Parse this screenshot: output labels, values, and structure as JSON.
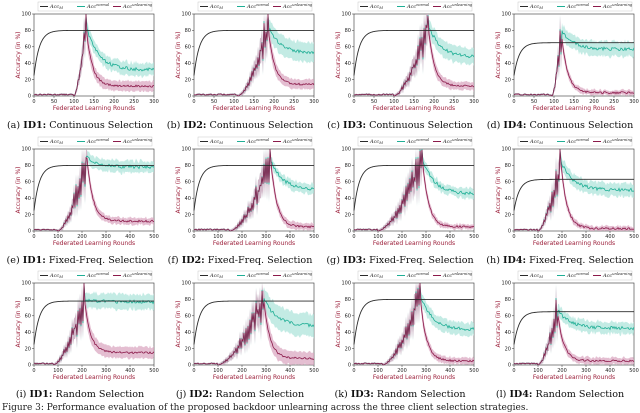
{
  "colors": {
    "acc_m": "#2b2b2b",
    "acc_normal": "#1fae95",
    "acc_normal_band": "#a9e3d8",
    "acc_unlearning": "#8b1a4a",
    "acc_unlearning_band": "#d9a3bd",
    "axis_label": "#9c1f3a"
  },
  "legend": {
    "acc_m": "Acc_M",
    "acc_normal": "Acc_B^normal",
    "acc_unlearning": "Acc_B^unlearning"
  },
  "chart_data": [
    {
      "id": "a",
      "type": "line",
      "caption_prefix": "(a) ",
      "caption_bold": "ID1:",
      "caption_rest": " Continuous Selection",
      "xlabel": "Federated Learning Rounds",
      "ylabel": "Accuracy (in %)",
      "xlim": [
        0,
        300
      ],
      "ylim": [
        0,
        100
      ],
      "xticks": [
        "0",
        "50",
        "100",
        "150",
        "200",
        "250",
        "300"
      ],
      "yticks": [
        "0",
        "20",
        "40",
        "60",
        "80",
        "100"
      ],
      "acc_m_plateau": 80,
      "acc_m_rise": 25,
      "peak_round": 130,
      "peak_value": 86,
      "start_round": 100,
      "normal_final": 32,
      "unlearning_final": 12,
      "band_normal": 8,
      "band_unlearning": 6
    },
    {
      "id": "b",
      "type": "line",
      "caption_prefix": "(b) ",
      "caption_bold": "ID2:",
      "caption_rest": " Continuous Selection",
      "xlabel": "Federated Learning Rounds",
      "ylabel": "Accuracy (in %)",
      "xlim": [
        0,
        300
      ],
      "ylim": [
        0,
        100
      ],
      "xticks": [
        "0",
        "50",
        "100",
        "150",
        "200",
        "250",
        "300"
      ],
      "yticks": [
        "0",
        "20",
        "40",
        "60",
        "80",
        "100"
      ],
      "acc_m_plateau": 80,
      "acc_m_rise": 25,
      "peak_round": 185,
      "peak_value": 85,
      "start_round": 110,
      "normal_final": 52,
      "unlearning_final": 14,
      "band_normal": 12,
      "band_unlearning": 6
    },
    {
      "id": "c",
      "type": "line",
      "caption_prefix": "(c) ",
      "caption_bold": "ID3:",
      "caption_rest": " Continuous Selection",
      "xlabel": "Federated Learning Rounds",
      "ylabel": "Accuracy (in %)",
      "xlim": [
        0,
        300
      ],
      "ylim": [
        0,
        100
      ],
      "xticks": [
        "0",
        "50",
        "100",
        "150",
        "200",
        "250",
        "300"
      ],
      "yticks": [
        "0",
        "20",
        "40",
        "60",
        "80",
        "100"
      ],
      "acc_m_plateau": 80,
      "acc_m_rise": 25,
      "peak_round": 185,
      "peak_value": 88,
      "start_round": 100,
      "normal_final": 47,
      "unlearning_final": 12,
      "band_normal": 10,
      "band_unlearning": 5
    },
    {
      "id": "d",
      "type": "line",
      "caption_prefix": "(d) ",
      "caption_bold": "ID4:",
      "caption_rest": " Continuous Selection",
      "xlabel": "Federated Learning Rounds",
      "ylabel": "Accuracy (in %)",
      "xlim": [
        0,
        300
      ],
      "ylim": [
        0,
        100
      ],
      "xticks": [
        "0",
        "50",
        "100",
        "150",
        "200",
        "250",
        "300"
      ],
      "yticks": [
        "0",
        "20",
        "40",
        "60",
        "80",
        "100"
      ],
      "acc_m_plateau": 65,
      "acc_m_rise": 25,
      "peak_round": 118,
      "peak_value": 80,
      "start_round": 95,
      "normal_final": 57,
      "unlearning_final": 4,
      "band_normal": 9,
      "band_unlearning": 3
    },
    {
      "id": "e",
      "type": "line",
      "caption_prefix": "(e) ",
      "caption_bold": "ID1:",
      "caption_rest": " Fixed-Freq. Selection",
      "xlabel": "Federated Learning Rounds",
      "ylabel": "Accuracy (in %)",
      "xlim": [
        0,
        500
      ],
      "ylim": [
        0,
        100
      ],
      "xticks": [
        "0",
        "100",
        "200",
        "300",
        "400",
        "500"
      ],
      "yticks": [
        "0",
        "20",
        "40",
        "60",
        "80",
        "100"
      ],
      "acc_m_plateau": 80,
      "acc_m_rise": 25,
      "peak_round": 220,
      "peak_value": 90,
      "start_round": 100,
      "normal_final": 78,
      "unlearning_final": 12,
      "band_normal": 7,
      "band_unlearning": 4
    },
    {
      "id": "f",
      "type": "line",
      "caption_prefix": "(f) ",
      "caption_bold": "ID2:",
      "caption_rest": " Fixed-Freq. Selection",
      "xlabel": "Federated Learning Rounds",
      "ylabel": "Accuracy (in %)",
      "xlim": [
        0,
        500
      ],
      "ylim": [
        0,
        100
      ],
      "xticks": [
        "0",
        "100",
        "200",
        "300",
        "400",
        "500"
      ],
      "yticks": [
        "0",
        "20",
        "40",
        "60",
        "80",
        "100"
      ],
      "acc_m_plateau": 80,
      "acc_m_rise": 25,
      "peak_round": 320,
      "peak_value": 86,
      "start_round": 150,
      "normal_final": 50,
      "unlearning_final": 5,
      "band_normal": 6,
      "band_unlearning": 4
    },
    {
      "id": "g",
      "type": "line",
      "caption_prefix": "(g) ",
      "caption_bold": "ID3:",
      "caption_rest": " Fixed-Freq. Selection",
      "xlabel": "Federated Learning Rounds",
      "ylabel": "Accuracy (in %)",
      "xlim": [
        0,
        500
      ],
      "ylim": [
        0,
        100
      ],
      "xticks": [
        "0",
        "100",
        "200",
        "300",
        "400",
        "500"
      ],
      "yticks": [
        "0",
        "20",
        "40",
        "60",
        "80",
        "100"
      ],
      "acc_m_plateau": 80,
      "acc_m_rise": 25,
      "peak_round": 285,
      "peak_value": 88,
      "start_round": 100,
      "normal_final": 45,
      "unlearning_final": 5,
      "band_normal": 6,
      "band_unlearning": 3
    },
    {
      "id": "h",
      "type": "line",
      "caption_prefix": "(h) ",
      "caption_bold": "ID4:",
      "caption_rest": " Fixed-Freq. Selection",
      "xlabel": "Federated Learning Rounds",
      "ylabel": "Accuracy (in %)",
      "xlim": [
        0,
        500
      ],
      "ylim": [
        0,
        100
      ],
      "xticks": [
        "0",
        "100",
        "200",
        "300",
        "400",
        "500"
      ],
      "yticks": [
        "0",
        "20",
        "40",
        "60",
        "80",
        "100"
      ],
      "acc_m_plateau": 63,
      "acc_m_rise": 25,
      "peak_round": 195,
      "peak_value": 85,
      "start_round": 100,
      "normal_final": 50,
      "unlearning_final": 3,
      "band_normal": 8,
      "band_unlearning": 3
    },
    {
      "id": "i",
      "type": "line",
      "caption_prefix": "(i) ",
      "caption_bold": "ID1:",
      "caption_rest": " Random Selection",
      "xlabel": "Federated Learning Rounds",
      "ylabel": "Accuracy (in %)",
      "xlim": [
        0,
        500
      ],
      "ylim": [
        0,
        100
      ],
      "xticks": [
        "0",
        "100",
        "200",
        "300",
        "400",
        "500"
      ],
      "yticks": [
        "0",
        "20",
        "40",
        "60",
        "80",
        "100"
      ],
      "acc_m_plateau": 78,
      "acc_m_rise": 25,
      "peak_round": 210,
      "peak_value": 80,
      "start_round": 80,
      "normal_final": 77,
      "unlearning_final": 15,
      "band_normal": 9,
      "band_unlearning": 7
    },
    {
      "id": "j",
      "type": "line",
      "caption_prefix": "(j) ",
      "caption_bold": "ID2:",
      "caption_rest": " Random Selection",
      "xlabel": "Federated Learning Rounds",
      "ylabel": "Accuracy (in %)",
      "xlim": [
        0,
        500
      ],
      "ylim": [
        0,
        100
      ],
      "xticks": [
        "0",
        "100",
        "200",
        "300",
        "400",
        "500"
      ],
      "yticks": [
        "0",
        "20",
        "40",
        "60",
        "80",
        "100"
      ],
      "acc_m_plateau": 78,
      "acc_m_rise": 25,
      "peak_round": 290,
      "peak_value": 82,
      "start_round": 100,
      "normal_final": 48,
      "unlearning_final": 8,
      "band_normal": 14,
      "band_unlearning": 8
    },
    {
      "id": "k",
      "type": "line",
      "caption_prefix": "(k) ",
      "caption_bold": "ID3:",
      "caption_rest": " Random Selection",
      "xlabel": "Federated Learning Rounds",
      "ylabel": "Accuracy (in %)",
      "xlim": [
        0,
        500
      ],
      "ylim": [
        0,
        100
      ],
      "xticks": [
        "0",
        "100",
        "200",
        "300",
        "400",
        "500"
      ],
      "yticks": [
        "0",
        "20",
        "40",
        "60",
        "80",
        "100"
      ],
      "acc_m_plateau": 80,
      "acc_m_rise": 25,
      "peak_round": 275,
      "peak_value": 86,
      "start_round": 120,
      "normal_final": 43,
      "unlearning_final": 5,
      "band_normal": 8,
      "band_unlearning": 4
    },
    {
      "id": "l",
      "type": "line",
      "caption_prefix": "(l) ",
      "caption_bold": "ID4:",
      "caption_rest": " Random Selection",
      "xlabel": "Federated Learning Rounds",
      "ylabel": "Accuracy (in %)",
      "xlim": [
        0,
        500
      ],
      "ylim": [
        0,
        100
      ],
      "xticks": [
        "0",
        "100",
        "200",
        "300",
        "400",
        "500"
      ],
      "yticks": [
        "0",
        "20",
        "40",
        "60",
        "80",
        "100"
      ],
      "acc_m_plateau": 65,
      "acc_m_rise": 25,
      "peak_round": 180,
      "peak_value": 68,
      "start_round": 100,
      "normal_final": 45,
      "unlearning_final": 5,
      "band_normal": 7,
      "band_unlearning": 4
    }
  ],
  "footer": "Figure 3: Performance evaluation of the proposed backdoor unlearning across the three client selection strategies."
}
